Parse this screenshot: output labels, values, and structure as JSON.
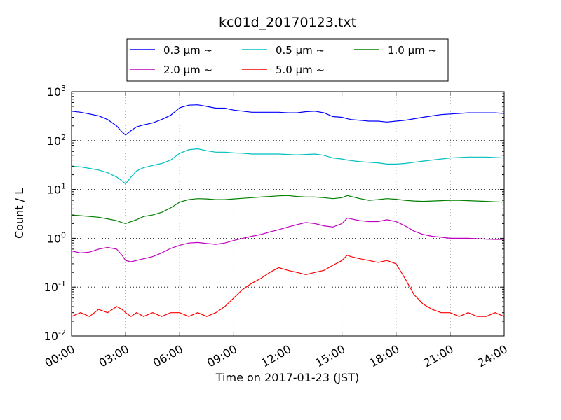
{
  "chart_data": {
    "type": "line",
    "title": "kc01d_20170123.txt",
    "xlabel": "Time on 2017-01-23 (JST)",
    "ylabel": "Count / L",
    "yscale": "log",
    "ylim": [
      0.01,
      1000
    ],
    "xlim": [
      0,
      24
    ],
    "grid": true,
    "legend_position": "top, above plot",
    "x_ticks": [
      {
        "value": 0,
        "label": "00:00"
      },
      {
        "value": 3,
        "label": "03:00"
      },
      {
        "value": 6,
        "label": "06:00"
      },
      {
        "value": 9,
        "label": "09:00"
      },
      {
        "value": 12,
        "label": "12:00"
      },
      {
        "value": 15,
        "label": "15:00"
      },
      {
        "value": 18,
        "label": "18:00"
      },
      {
        "value": 21,
        "label": "21:00"
      },
      {
        "value": 24,
        "label": "24:00"
      }
    ],
    "y_ticks": [
      {
        "value": 0.01,
        "base": "10",
        "exp": "-2"
      },
      {
        "value": 0.1,
        "base": "10",
        "exp": "-1"
      },
      {
        "value": 1,
        "base": "10",
        "exp": "0"
      },
      {
        "value": 10,
        "base": "10",
        "exp": "1"
      },
      {
        "value": 100,
        "base": "10",
        "exp": "2"
      },
      {
        "value": 1000,
        "base": "10",
        "exp": "3"
      }
    ],
    "x_hours": [
      0,
      0.5,
      1,
      1.5,
      2,
      2.5,
      2.8,
      3,
      3.3,
      3.6,
      4,
      4.5,
      5,
      5.5,
      6,
      6.5,
      7,
      7.5,
      8,
      8.5,
      9,
      9.5,
      10,
      10.5,
      11,
      11.5,
      12,
      12.5,
      13,
      13.5,
      14,
      14.5,
      15,
      15.3,
      15.5,
      16,
      16.5,
      17,
      17.5,
      18,
      18.5,
      19,
      19.5,
      20,
      20.5,
      21,
      21.5,
      22,
      22.5,
      23,
      23.5,
      24
    ],
    "series": [
      {
        "name": "0.3 μm ~",
        "color": "#0000ff",
        "values": [
          400,
          380,
          350,
          320,
          270,
          200,
          150,
          130,
          160,
          190,
          210,
          230,
          270,
          330,
          470,
          530,
          540,
          500,
          460,
          460,
          420,
          400,
          380,
          380,
          380,
          380,
          370,
          370,
          390,
          400,
          370,
          310,
          300,
          280,
          270,
          260,
          250,
          250,
          240,
          250,
          260,
          280,
          300,
          320,
          340,
          350,
          360,
          370,
          370,
          370,
          370,
          360
        ]
      },
      {
        "name": "0.5 μm ~",
        "color": "#00bfbf",
        "values": [
          30,
          29,
          27,
          25,
          22,
          18,
          15,
          13,
          18,
          24,
          28,
          31,
          34,
          40,
          55,
          65,
          68,
          62,
          58,
          58,
          56,
          55,
          53,
          53,
          53,
          53,
          52,
          51,
          52,
          53,
          50,
          44,
          42,
          40,
          39,
          37,
          36,
          35,
          33,
          33,
          34,
          36,
          38,
          40,
          42,
          44,
          45,
          46,
          46,
          46,
          45,
          44
        ]
      },
      {
        "name": "1.0 μm ~",
        "color": "#008000",
        "values": [
          3.0,
          2.9,
          2.8,
          2.7,
          2.5,
          2.3,
          2.1,
          2.0,
          2.2,
          2.4,
          2.8,
          3.0,
          3.4,
          4.2,
          5.5,
          6.2,
          6.5,
          6.4,
          6.2,
          6.2,
          6.4,
          6.6,
          6.8,
          7.0,
          7.2,
          7.4,
          7.5,
          7.2,
          7.0,
          7.0,
          6.8,
          6.5,
          6.8,
          7.5,
          7.2,
          6.5,
          6.0,
          6.2,
          6.5,
          6.3,
          6.0,
          5.8,
          5.7,
          5.8,
          5.9,
          6.0,
          6.0,
          5.9,
          5.8,
          5.7,
          5.6,
          5.5
        ]
      },
      {
        "name": "2.0 μm ~",
        "color": "#bf00bf",
        "values": [
          0.55,
          0.5,
          0.52,
          0.6,
          0.65,
          0.6,
          0.45,
          0.35,
          0.33,
          0.35,
          0.38,
          0.42,
          0.5,
          0.62,
          0.72,
          0.8,
          0.82,
          0.78,
          0.75,
          0.8,
          0.9,
          1.0,
          1.1,
          1.2,
          1.35,
          1.5,
          1.7,
          1.9,
          2.1,
          2.0,
          1.8,
          1.7,
          2.0,
          2.6,
          2.5,
          2.3,
          2.2,
          2.2,
          2.4,
          2.2,
          1.8,
          1.4,
          1.2,
          1.1,
          1.05,
          1.0,
          1.0,
          1.0,
          0.98,
          0.96,
          0.95,
          0.95
        ]
      },
      {
        "name": "5.0 μm ~",
        "color": "#ff0000",
        "values": [
          0.025,
          0.03,
          0.025,
          0.035,
          0.03,
          0.04,
          0.035,
          0.03,
          0.025,
          0.03,
          0.025,
          0.03,
          0.025,
          0.03,
          0.03,
          0.025,
          0.03,
          0.025,
          0.03,
          0.04,
          0.06,
          0.09,
          0.12,
          0.15,
          0.2,
          0.25,
          0.22,
          0.2,
          0.18,
          0.2,
          0.22,
          0.28,
          0.35,
          0.45,
          0.42,
          0.38,
          0.35,
          0.32,
          0.35,
          0.3,
          0.15,
          0.07,
          0.045,
          0.035,
          0.03,
          0.03,
          0.025,
          0.03,
          0.025,
          0.025,
          0.03,
          0.025
        ]
      }
    ]
  }
}
